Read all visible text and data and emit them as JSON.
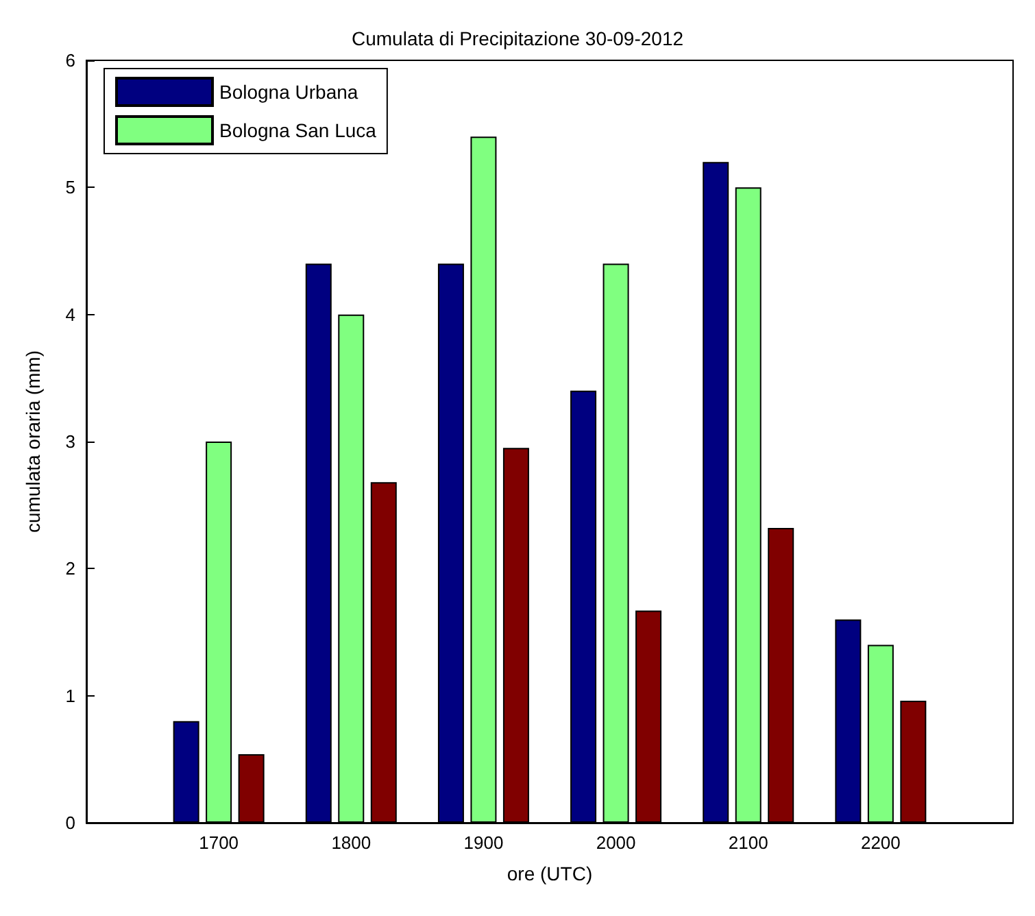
{
  "chart_data": {
    "type": "bar",
    "title": "Cumulata di Precipitazione 30-09-2012",
    "xlabel": "ore (UTC)",
    "ylabel": "cumulata oraria (mm)",
    "x": [
      1700,
      1800,
      1900,
      2000,
      2100,
      2200
    ],
    "series": [
      {
        "name": "Bologna Urbana",
        "color": "#000080",
        "values": [
          0.8,
          4.4,
          4.4,
          3.4,
          5.2,
          1.6
        ]
      },
      {
        "name": "Bologna San Luca",
        "color": "#80ff80",
        "values": [
          3.0,
          4.0,
          5.4,
          4.4,
          5.0,
          1.4
        ]
      },
      {
        "color": "#800000",
        "values": [
          0.54,
          2.68,
          2.95,
          1.67,
          2.32,
          0.96
        ]
      }
    ],
    "xlim": [
      1600,
      2300
    ],
    "xticks": [
      1700,
      1800,
      1900,
      2000,
      2100,
      2200
    ],
    "ylim": [
      0,
      6
    ],
    "yticks": [
      0,
      1,
      2,
      3,
      4,
      5,
      6
    ],
    "grid": false,
    "legend": "top left"
  }
}
